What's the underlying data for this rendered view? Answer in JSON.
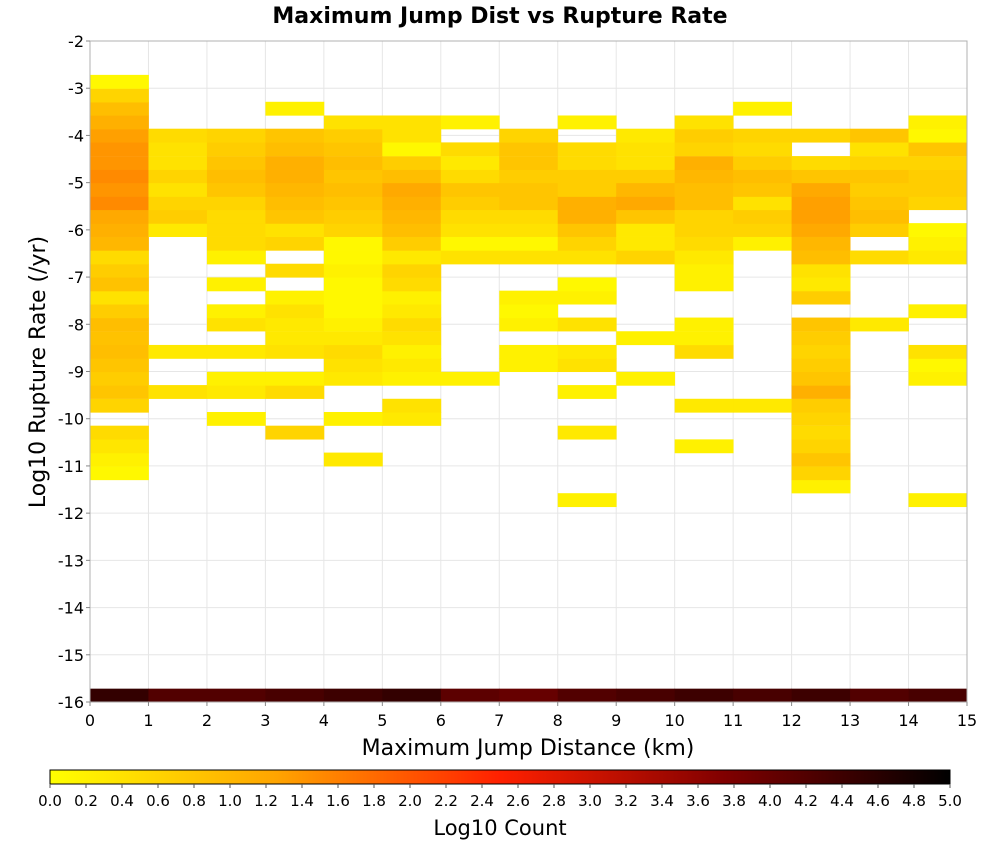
{
  "chart_data": {
    "type": "heatmap",
    "title": "Maximum Jump Dist vs Rupture Rate",
    "xlabel": "Maximum Jump Distance (km)",
    "ylabel": "Log10 Rupture Rate (/yr)",
    "xlim": [
      0,
      15
    ],
    "ylim": [
      -16,
      -2
    ],
    "x_ticks": [
      "0",
      "1",
      "2",
      "3",
      "4",
      "5",
      "6",
      "7",
      "8",
      "9",
      "10",
      "11",
      "12",
      "13",
      "14",
      "15"
    ],
    "y_ticks": [
      "-16",
      "-15",
      "-14",
      "-13",
      "-12",
      "-11",
      "-10",
      "-9",
      "-8",
      "-7",
      "-6",
      "-5",
      "-4",
      "-3",
      "-2"
    ],
    "x_bin_width": 1,
    "y_bin_height": 0.285,
    "grid": true,
    "colorbar": {
      "label": "Log10 Count",
      "range": [
        0,
        5
      ],
      "ticks": [
        "0.0",
        "0.2",
        "0.4",
        "0.6",
        "0.8",
        "1.0",
        "1.2",
        "1.4",
        "1.6",
        "1.8",
        "2.0",
        "2.2",
        "2.4",
        "2.6",
        "2.8",
        "3.0",
        "3.2",
        "3.4",
        "3.6",
        "3.8",
        "4.0",
        "4.2",
        "4.4",
        "4.6",
        "4.8",
        "5.0"
      ],
      "colors": [
        "#ffff00",
        "#ffa500",
        "#ff2000",
        "#800000",
        "#000000"
      ]
    },
    "columns": [
      {
        "x": 0,
        "cells": [
          [
            -15.86,
            4.5
          ],
          [
            -11.15,
            0.1
          ],
          [
            -10.86,
            0.2
          ],
          [
            -10.58,
            0.35
          ],
          [
            -10.29,
            0.5
          ],
          [
            -9.72,
            0.6
          ],
          [
            -9.43,
            0.8
          ],
          [
            -9.15,
            0.7
          ],
          [
            -8.86,
            0.8
          ],
          [
            -8.58,
            0.9
          ],
          [
            -8.29,
            0.85
          ],
          [
            -8.0,
            0.9
          ],
          [
            -7.72,
            0.7
          ],
          [
            -7.43,
            0.4
          ],
          [
            -7.15,
            0.85
          ],
          [
            -6.86,
            0.7
          ],
          [
            -6.58,
            0.5
          ],
          [
            -6.29,
            1.0
          ],
          [
            -6.0,
            1.1
          ],
          [
            -5.72,
            1.2
          ],
          [
            -5.43,
            1.5
          ],
          [
            -5.15,
            1.4
          ],
          [
            -4.86,
            1.5
          ],
          [
            -4.58,
            1.4
          ],
          [
            -4.29,
            1.4
          ],
          [
            -4.0,
            1.3
          ],
          [
            -3.72,
            1.1
          ],
          [
            -3.43,
            0.9
          ],
          [
            -3.15,
            0.6
          ],
          [
            -2.86,
            0.1
          ]
        ]
      },
      {
        "x": 1,
        "cells": [
          [
            -15.86,
            4.2
          ],
          [
            -9.43,
            0.4
          ],
          [
            -8.58,
            0.3
          ],
          [
            -6.0,
            0.3
          ],
          [
            -5.72,
            0.7
          ],
          [
            -5.43,
            0.6
          ],
          [
            -5.15,
            0.4
          ],
          [
            -4.86,
            0.6
          ],
          [
            -4.58,
            0.4
          ],
          [
            -4.29,
            0.4
          ],
          [
            -4.0,
            0.5
          ]
        ]
      },
      {
        "x": 2,
        "cells": [
          [
            -15.86,
            4.2
          ],
          [
            -10.0,
            0.2
          ],
          [
            -9.43,
            0.3
          ],
          [
            -9.15,
            0.2
          ],
          [
            -8.58,
            0.3
          ],
          [
            -8.0,
            0.4
          ],
          [
            -7.72,
            0.2
          ],
          [
            -7.15,
            0.2
          ],
          [
            -6.58,
            0.2
          ],
          [
            -6.29,
            0.5
          ],
          [
            -6.0,
            0.5
          ],
          [
            -5.72,
            0.5
          ],
          [
            -5.43,
            0.6
          ],
          [
            -5.15,
            0.8
          ],
          [
            -4.86,
            0.9
          ],
          [
            -4.58,
            0.8
          ],
          [
            -4.29,
            0.7
          ],
          [
            -4.0,
            0.6
          ]
        ]
      },
      {
        "x": 3,
        "cells": [
          [
            -15.86,
            4.3
          ],
          [
            -10.29,
            0.6
          ],
          [
            -9.43,
            0.5
          ],
          [
            -9.15,
            0.2
          ],
          [
            -8.58,
            0.4
          ],
          [
            -8.29,
            0.3
          ],
          [
            -8.0,
            0.3
          ],
          [
            -7.72,
            0.4
          ],
          [
            -7.43,
            0.2
          ],
          [
            -6.86,
            0.5
          ],
          [
            -6.29,
            0.6
          ],
          [
            -6.0,
            0.4
          ],
          [
            -5.72,
            0.8
          ],
          [
            -5.43,
            0.9
          ],
          [
            -5.15,
            1.0
          ],
          [
            -4.86,
            1.1
          ],
          [
            -4.58,
            1.1
          ],
          [
            -4.29,
            0.9
          ],
          [
            -4.0,
            0.8
          ],
          [
            -3.43,
            0.2
          ]
        ]
      },
      {
        "x": 4,
        "cells": [
          [
            -15.86,
            4.4
          ],
          [
            -10.86,
            0.3
          ],
          [
            -10.0,
            0.2
          ],
          [
            -9.15,
            0.3
          ],
          [
            -8.86,
            0.4
          ],
          [
            -8.58,
            0.5
          ],
          [
            -8.29,
            0.3
          ],
          [
            -8.0,
            0.2
          ],
          [
            -7.72,
            0.1
          ],
          [
            -7.43,
            0.1
          ],
          [
            -7.15,
            0.1
          ],
          [
            -6.86,
            0.2
          ],
          [
            -6.58,
            0.1
          ],
          [
            -6.29,
            0.1
          ],
          [
            -6.0,
            0.6
          ],
          [
            -5.72,
            0.7
          ],
          [
            -5.43,
            0.8
          ],
          [
            -5.15,
            0.9
          ],
          [
            -4.86,
            0.8
          ],
          [
            -4.58,
            0.9
          ],
          [
            -4.29,
            0.8
          ],
          [
            -4.0,
            0.7
          ],
          [
            -3.72,
            0.4
          ]
        ]
      },
      {
        "x": 5,
        "cells": [
          [
            -15.86,
            4.5
          ],
          [
            -10.0,
            0.3
          ],
          [
            -9.72,
            0.4
          ],
          [
            -9.15,
            0.2
          ],
          [
            -8.86,
            0.3
          ],
          [
            -8.58,
            0.2
          ],
          [
            -8.29,
            0.4
          ],
          [
            -8.0,
            0.5
          ],
          [
            -7.72,
            0.3
          ],
          [
            -7.43,
            0.2
          ],
          [
            -7.15,
            0.5
          ],
          [
            -6.86,
            0.6
          ],
          [
            -6.58,
            0.3
          ],
          [
            -6.29,
            0.7
          ],
          [
            -6.0,
            0.9
          ],
          [
            -5.72,
            1.0
          ],
          [
            -5.43,
            1.1
          ],
          [
            -5.15,
            1.2
          ],
          [
            -4.86,
            0.9
          ],
          [
            -4.58,
            0.7
          ],
          [
            -4.29,
            0.1
          ],
          [
            -4.0,
            0.4
          ],
          [
            -3.72,
            0.4
          ]
        ]
      },
      {
        "x": 6,
        "cells": [
          [
            -15.86,
            4.1
          ],
          [
            -9.15,
            0.2
          ],
          [
            -6.58,
            0.4
          ],
          [
            -6.29,
            0.1
          ],
          [
            -6.0,
            0.4
          ],
          [
            -5.72,
            0.5
          ],
          [
            -5.43,
            0.7
          ],
          [
            -5.15,
            0.8
          ],
          [
            -4.86,
            0.5
          ],
          [
            -4.58,
            0.3
          ],
          [
            -4.29,
            0.5
          ],
          [
            -3.72,
            0.2
          ]
        ]
      },
      {
        "x": 7,
        "cells": [
          [
            -15.86,
            4.0
          ],
          [
            -8.86,
            0.2
          ],
          [
            -8.58,
            0.2
          ],
          [
            -8.0,
            0.2
          ],
          [
            -7.72,
            0.1
          ],
          [
            -7.43,
            0.2
          ],
          [
            -6.58,
            0.4
          ],
          [
            -6.29,
            0.1
          ],
          [
            -6.0,
            0.4
          ],
          [
            -5.72,
            0.5
          ],
          [
            -5.43,
            0.8
          ],
          [
            -5.15,
            0.8
          ],
          [
            -4.86,
            0.7
          ],
          [
            -4.58,
            0.8
          ],
          [
            -4.29,
            0.8
          ],
          [
            -4.0,
            0.6
          ]
        ]
      },
      {
        "x": 8,
        "cells": [
          [
            -15.86,
            4.2
          ],
          [
            -11.72,
            0.2
          ],
          [
            -10.29,
            0.3
          ],
          [
            -9.43,
            0.2
          ],
          [
            -8.86,
            0.4
          ],
          [
            -8.58,
            0.3
          ],
          [
            -8.0,
            0.4
          ],
          [
            -7.43,
            0.2
          ],
          [
            -7.15,
            0.1
          ],
          [
            -6.58,
            0.4
          ],
          [
            -6.29,
            0.6
          ],
          [
            -6.0,
            0.8
          ],
          [
            -5.72,
            1.1
          ],
          [
            -5.43,
            1.1
          ],
          [
            -5.15,
            0.7
          ],
          [
            -4.86,
            0.7
          ],
          [
            -4.58,
            0.5
          ],
          [
            -4.29,
            0.5
          ],
          [
            -3.72,
            0.2
          ]
        ]
      },
      {
        "x": 9,
        "cells": [
          [
            -15.86,
            4.3
          ],
          [
            -9.15,
            0.2
          ],
          [
            -8.29,
            0.2
          ],
          [
            -6.58,
            0.6
          ],
          [
            -6.29,
            0.3
          ],
          [
            -6.0,
            0.3
          ],
          [
            -5.72,
            0.8
          ],
          [
            -5.43,
            1.2
          ],
          [
            -5.15,
            1.0
          ],
          [
            -4.86,
            0.7
          ],
          [
            -4.58,
            0.4
          ],
          [
            -4.29,
            0.4
          ],
          [
            -4.0,
            0.3
          ]
        ]
      },
      {
        "x": 10,
        "cells": [
          [
            -15.86,
            4.4
          ],
          [
            -10.58,
            0.2
          ],
          [
            -9.72,
            0.3
          ],
          [
            -8.58,
            0.5
          ],
          [
            -8.29,
            0.2
          ],
          [
            -8.0,
            0.2
          ],
          [
            -7.15,
            0.2
          ],
          [
            -6.86,
            0.2
          ],
          [
            -6.58,
            0.3
          ],
          [
            -6.29,
            0.5
          ],
          [
            -6.0,
            0.6
          ],
          [
            -5.72,
            0.6
          ],
          [
            -5.43,
            0.9
          ],
          [
            -5.15,
            0.9
          ],
          [
            -4.86,
            1.0
          ],
          [
            -4.58,
            1.1
          ],
          [
            -4.29,
            0.6
          ],
          [
            -4.0,
            0.7
          ],
          [
            -3.72,
            0.4
          ]
        ]
      },
      {
        "x": 11,
        "cells": [
          [
            -15.86,
            4.3
          ],
          [
            -9.72,
            0.3
          ],
          [
            -6.29,
            0.2
          ],
          [
            -6.0,
            0.6
          ],
          [
            -5.72,
            0.7
          ],
          [
            -5.43,
            0.4
          ],
          [
            -5.15,
            0.8
          ],
          [
            -4.86,
            0.9
          ],
          [
            -4.58,
            0.7
          ],
          [
            -4.29,
            0.5
          ],
          [
            -4.0,
            0.6
          ],
          [
            -3.43,
            0.2
          ]
        ]
      },
      {
        "x": 12,
        "cells": [
          [
            -15.86,
            4.4
          ],
          [
            -11.43,
            0.2
          ],
          [
            -11.15,
            0.6
          ],
          [
            -10.86,
            0.8
          ],
          [
            -10.58,
            0.6
          ],
          [
            -10.29,
            0.5
          ],
          [
            -10.0,
            0.6
          ],
          [
            -9.72,
            0.7
          ],
          [
            -9.43,
            1.1
          ],
          [
            -9.15,
            0.8
          ],
          [
            -8.86,
            0.7
          ],
          [
            -8.58,
            0.6
          ],
          [
            -8.29,
            0.7
          ],
          [
            -8.0,
            0.8
          ],
          [
            -7.43,
            0.7
          ],
          [
            -7.15,
            0.3
          ],
          [
            -6.86,
            0.4
          ],
          [
            -6.58,
            0.9
          ],
          [
            -6.29,
            1.0
          ],
          [
            -6.0,
            1.2
          ],
          [
            -5.72,
            1.3
          ],
          [
            -5.43,
            1.3
          ],
          [
            -5.15,
            1.2
          ],
          [
            -4.86,
            0.8
          ],
          [
            -4.58,
            0.5
          ],
          [
            -4.0,
            0.6
          ]
        ]
      },
      {
        "x": 13,
        "cells": [
          [
            -15.86,
            4.2
          ],
          [
            -8.0,
            0.3
          ],
          [
            -6.58,
            0.5
          ],
          [
            -6.0,
            0.7
          ],
          [
            -5.72,
            0.9
          ],
          [
            -5.43,
            0.8
          ],
          [
            -5.15,
            0.7
          ],
          [
            -4.86,
            0.8
          ],
          [
            -4.58,
            0.6
          ],
          [
            -4.29,
            0.4
          ],
          [
            -4.0,
            0.8
          ]
        ]
      },
      {
        "x": 14,
        "cells": [
          [
            -15.86,
            4.3
          ],
          [
            -11.72,
            0.2
          ],
          [
            -9.15,
            0.2
          ],
          [
            -8.86,
            0.1
          ],
          [
            -8.58,
            0.4
          ],
          [
            -7.72,
            0.2
          ],
          [
            -6.58,
            0.3
          ],
          [
            -6.29,
            0.2
          ],
          [
            -6.0,
            0.1
          ],
          [
            -5.43,
            0.6
          ],
          [
            -5.15,
            0.7
          ],
          [
            -4.86,
            0.7
          ],
          [
            -4.58,
            0.6
          ],
          [
            -4.29,
            0.8
          ],
          [
            -4.0,
            0.1
          ],
          [
            -3.72,
            0.2
          ]
        ]
      }
    ]
  }
}
